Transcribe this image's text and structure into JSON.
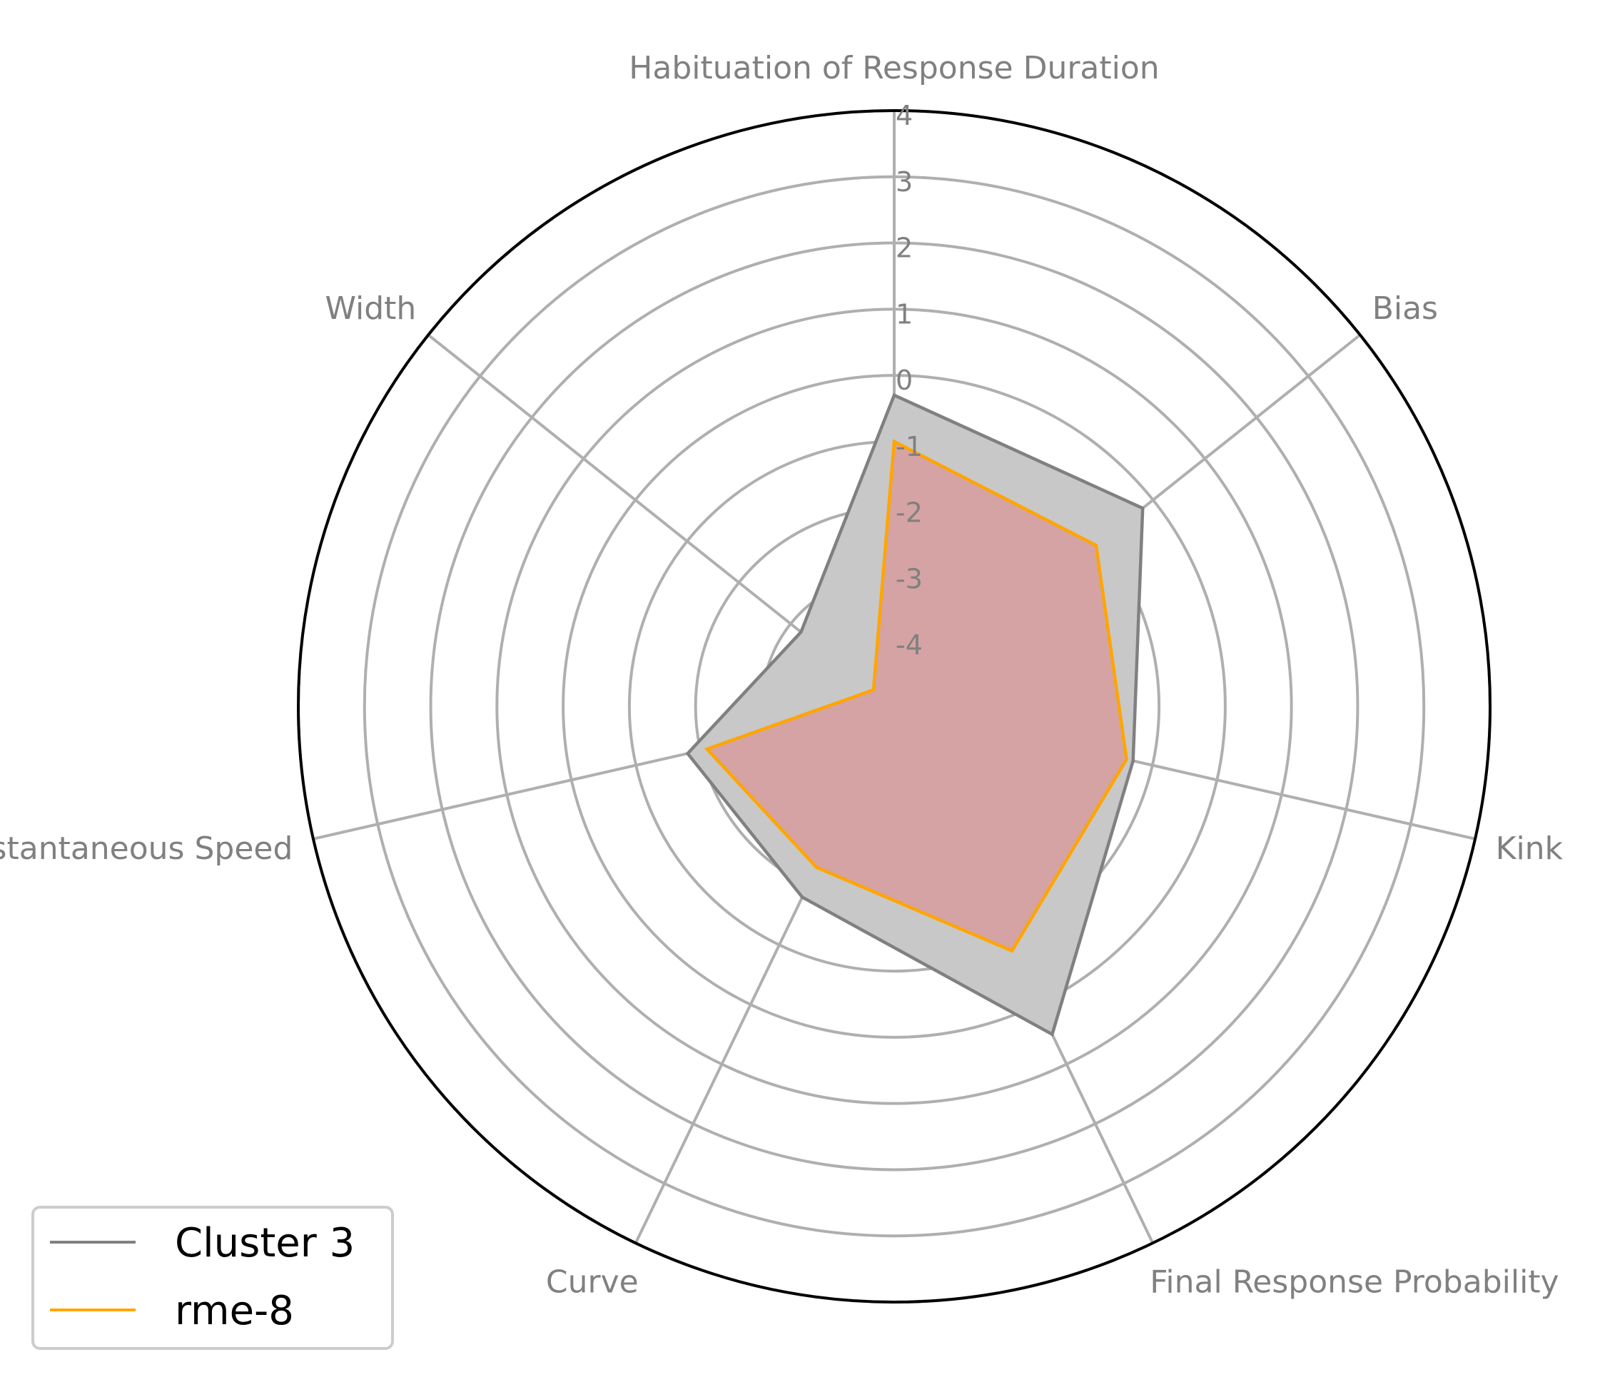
{
  "chart_data": {
    "type": "radar",
    "axes": [
      "Habituation of Response Duration",
      "Bias",
      "Kink",
      "Final Response Probability",
      "Curve",
      "Instantaneous Speed",
      "Width"
    ],
    "rlim": [
      -5,
      4
    ],
    "ticks": [
      -4,
      -3,
      -2,
      -1,
      0,
      1,
      2,
      3,
      4
    ],
    "tick_labels": [
      "-4",
      "-3",
      "-2",
      "-1",
      "0",
      "1",
      "2",
      "3",
      "4"
    ],
    "grid": true,
    "series": [
      {
        "name": "Cluster 3",
        "values": [
          -0.3,
          -0.2,
          -1.3,
          0.5,
          -1.8,
          -1.8,
          -3.2
        ],
        "line_color": "#808080",
        "fill_color": "#c8c8c8"
      },
      {
        "name": "rme-8",
        "values": [
          -1.0,
          -1.1,
          -1.4,
          -0.9,
          -2.3,
          -2.1,
          -4.6
        ],
        "line_color": "#ffa500",
        "fill_color": "#d5a3a3"
      }
    ],
    "legend": {
      "position": "bottom-left",
      "entries": [
        "Cluster 3",
        "rme-8"
      ]
    }
  }
}
